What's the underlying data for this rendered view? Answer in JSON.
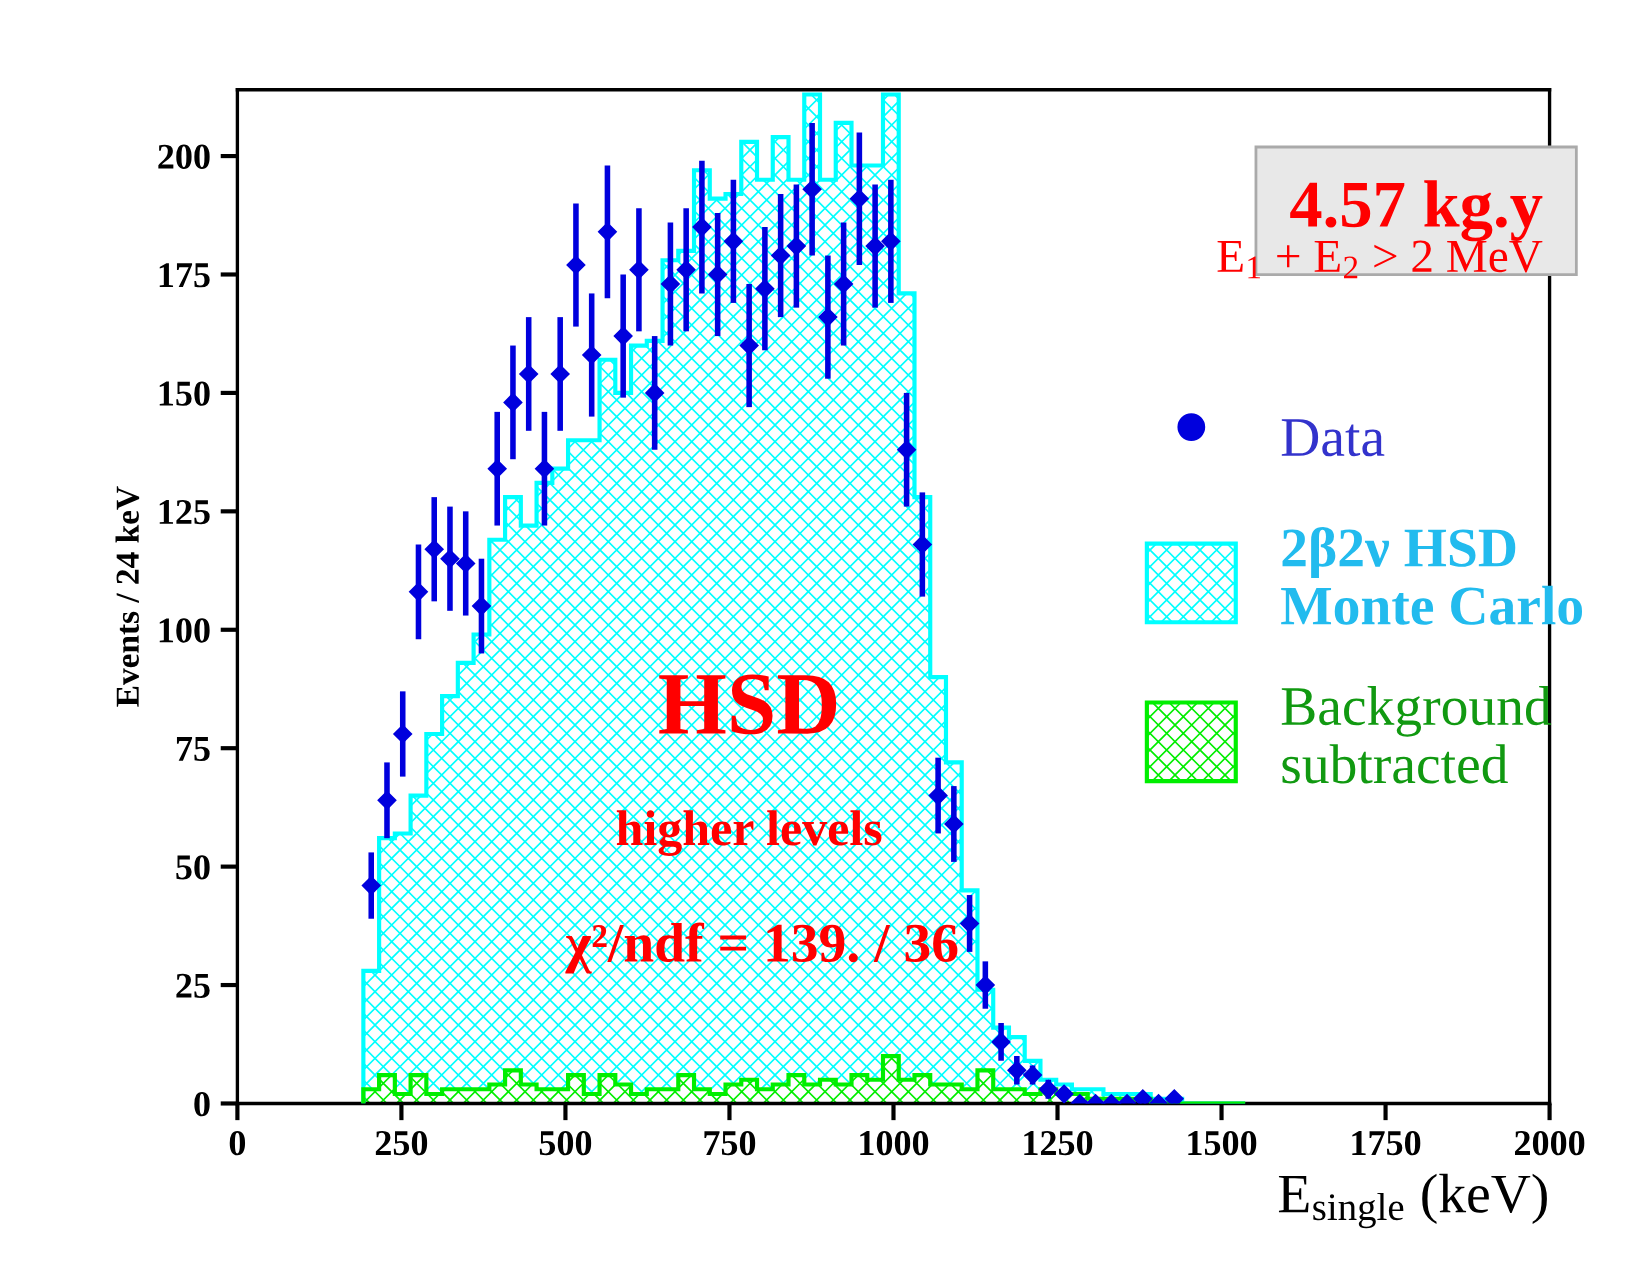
{
  "chart_data": {
    "type": "histogram",
    "xlabel": "E$_{single}$ (keV)",
    "ylabel": "Events / 24 keV",
    "annotations": [
      "4.57 kg.y",
      "E$_{1}$ + E$_{2}$ > 2 MeV",
      "HSD",
      "higher levels",
      "χ²/ndf = 139. / 36"
    ],
    "bins": [
      192,
      216,
      240,
      264,
      288,
      312,
      336,
      360,
      384,
      408,
      432,
      456,
      480,
      504,
      528,
      552,
      576,
      600,
      624,
      648,
      672,
      696,
      720,
      744,
      768,
      792,
      816,
      840,
      864,
      888,
      912,
      936,
      960,
      984,
      1008,
      1032,
      1056,
      1080,
      1104,
      1128,
      1152,
      1176,
      1200,
      1224,
      1248,
      1272,
      1296,
      1320,
      1344,
      1368,
      1392,
      1416,
      1440,
      1464,
      1488,
      1512,
      1536
    ],
    "series": [
      {
        "type": "scatter",
        "name": "Data",
        "color": "#0000dd",
        "marker": "diamond",
        "x": [
          204,
          228,
          252,
          276,
          300,
          324,
          348,
          372,
          396,
          420,
          444,
          468,
          492,
          516,
          540,
          564,
          588,
          612,
          636,
          660,
          684,
          708,
          732,
          756,
          780,
          804,
          828,
          852,
          876,
          900,
          924,
          948,
          972,
          996,
          1020,
          1044,
          1068,
          1092,
          1116,
          1140,
          1164,
          1188,
          1212,
          1236,
          1260,
          1284,
          1308,
          1332,
          1356,
          1380,
          1404,
          1428
        ],
        "values": [
          46,
          64,
          78,
          108,
          117,
          115,
          114,
          105,
          134,
          148,
          154,
          134,
          154,
          177,
          158,
          184,
          162,
          176,
          150,
          173,
          176,
          185,
          175,
          182,
          160,
          172,
          179,
          181,
          193,
          166,
          173,
          191,
          181,
          182,
          138,
          118,
          65,
          59,
          38,
          25,
          13,
          7,
          6,
          3,
          2,
          0,
          0,
          0,
          0,
          1,
          0,
          1
        ],
        "errors": [
          7,
          8,
          9,
          10,
          11,
          11,
          11,
          10,
          12,
          12,
          12,
          12,
          12,
          13,
          13,
          14,
          13,
          13,
          12,
          13,
          13,
          14,
          13,
          13,
          13,
          13,
          13,
          13,
          14,
          13,
          13,
          14,
          13,
          13,
          12,
          11,
          8,
          8,
          6,
          5,
          4,
          3,
          2,
          2,
          1,
          null,
          null,
          null,
          null,
          null,
          null,
          null
        ]
      },
      {
        "name": "2β2ν HSD\nMonte Carlo",
        "color": "#00ffff",
        "values": [
          28,
          56,
          57,
          65,
          78,
          86,
          93,
          99,
          119,
          128,
          122,
          131,
          134,
          140,
          140,
          157,
          150,
          160,
          161,
          178,
          180,
          197,
          191,
          192,
          203,
          195,
          204,
          195,
          213,
          195,
          207,
          198,
          198,
          213,
          171,
          128,
          90,
          72,
          45,
          24,
          16,
          14,
          9,
          5,
          4,
          3,
          3,
          2,
          2,
          2,
          1,
          1,
          0,
          0,
          0,
          0
        ]
      },
      {
        "name": "Background\nsubtracted",
        "color": "#00ee00",
        "values": [
          3,
          6,
          2,
          6,
          2,
          3,
          3,
          3,
          4,
          7,
          4,
          3,
          3,
          6,
          2,
          6,
          4,
          2,
          3,
          3,
          6,
          3,
          2,
          4,
          5,
          3,
          4,
          6,
          4,
          5,
          4,
          6,
          5,
          10,
          5,
          6,
          4,
          4,
          3,
          7,
          3,
          3,
          2,
          3,
          2,
          2,
          1,
          1,
          1,
          1,
          0,
          0,
          0,
          0,
          0,
          0
        ]
      }
    ],
    "xlim": [
      0,
      2000
    ],
    "ylim": [
      0,
      214
    ],
    "xticks": [
      0,
      250,
      500,
      750,
      1000,
      1250,
      1500,
      1750,
      2000
    ],
    "yticks": [
      0,
      25,
      50,
      75,
      100,
      125,
      150,
      175,
      200
    ],
    "grid": false,
    "legend": "right"
  }
}
